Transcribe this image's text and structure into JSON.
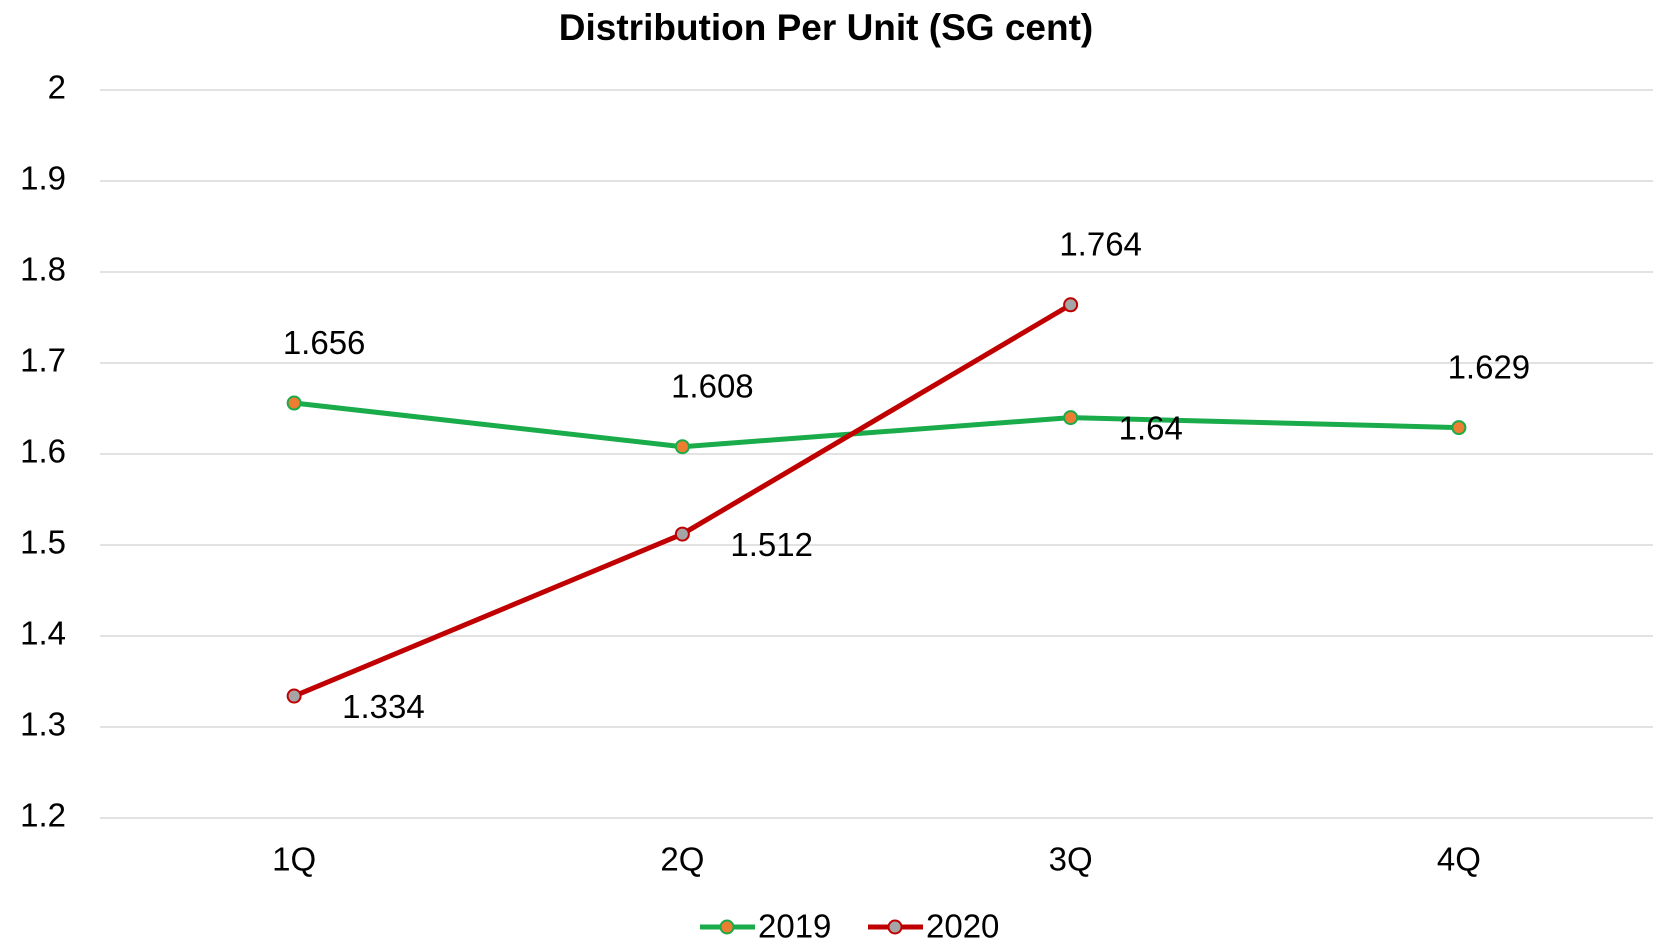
{
  "chart_data": {
    "type": "line",
    "title": "Distribution Per Unit (SG cent)",
    "categories": [
      "1Q",
      "2Q",
      "3Q",
      "4Q"
    ],
    "series": [
      {
        "name": "2019",
        "color": "#1aab4b",
        "marker_color": "#ed7d31",
        "values": [
          1.656,
          1.608,
          1.64,
          1.629
        ]
      },
      {
        "name": "2020",
        "color": "#c00000",
        "marker_color": "#a5a5a5",
        "values": [
          1.334,
          1.512,
          1.764,
          null
        ]
      }
    ],
    "ylim": [
      1.2,
      2
    ],
    "yticks": [
      1.2,
      1.3,
      1.4,
      1.5,
      1.6,
      1.7,
      1.8,
      1.9,
      2
    ],
    "grid": true,
    "legend": "bottom"
  }
}
